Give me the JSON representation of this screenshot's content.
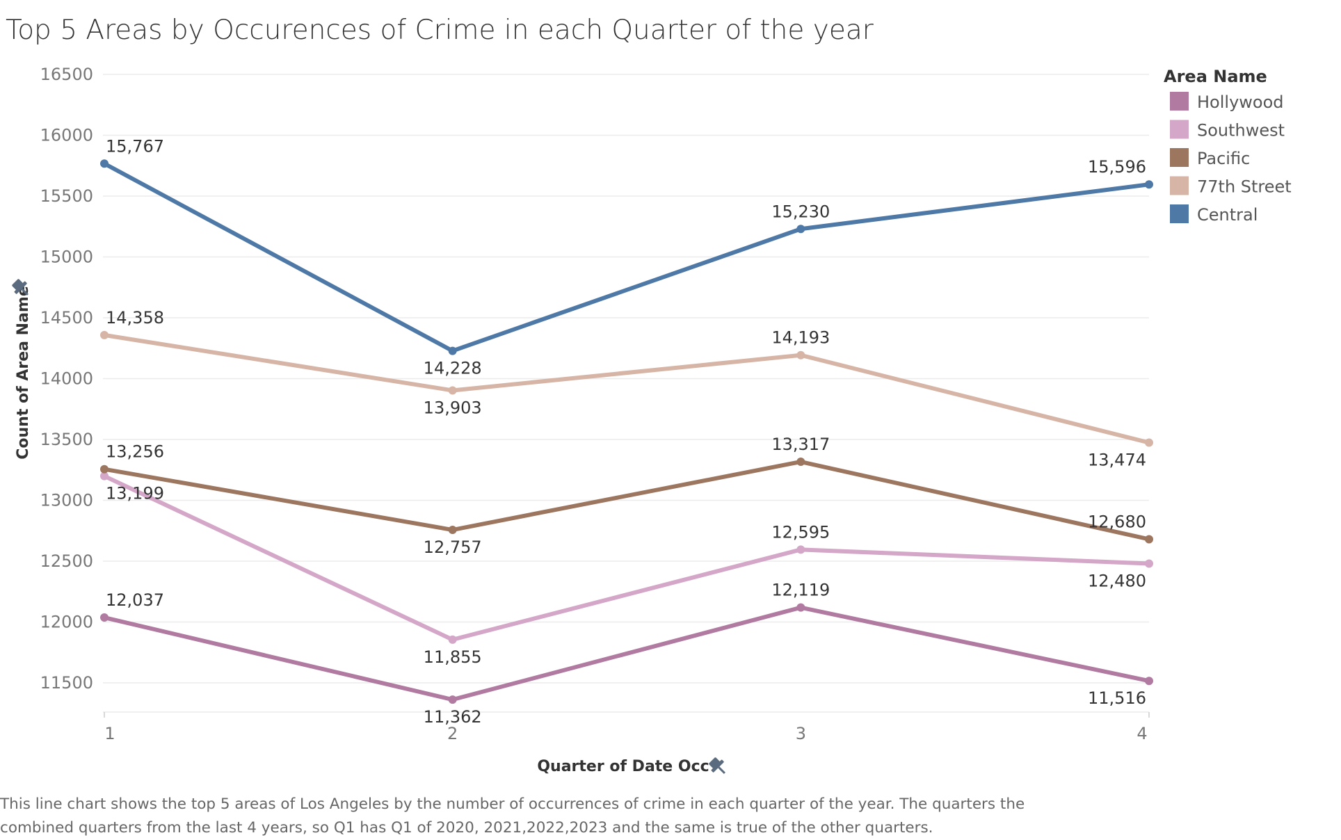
{
  "chart_data": {
    "type": "line",
    "title": "Top 5 Areas by Occurences of Crime in each Quarter of the year",
    "xlabel": "Quarter of Date Occ",
    "ylabel": "Count of Area Name",
    "categories": [
      "1",
      "2",
      "3",
      "4"
    ],
    "ylim": [
      11250,
      16500
    ],
    "yticks": [
      11500,
      12000,
      12500,
      13000,
      13500,
      14000,
      14500,
      15000,
      15500,
      16000,
      16500
    ],
    "grid": true,
    "legend_title": "Area Name",
    "legend_position": "right",
    "series": [
      {
        "name": "Hollywood",
        "color": "#b07aa1",
        "values": [
          12037,
          11362,
          12119,
          11516
        ],
        "labels": [
          "12,037",
          "11,362",
          "12,119",
          "11,516"
        ],
        "label_pos": [
          "above",
          "below",
          "above",
          "below"
        ]
      },
      {
        "name": "Southwest",
        "color": "#d4a6c8",
        "values": [
          13199,
          11855,
          12595,
          12480
        ],
        "labels": [
          "13,199",
          "11,855",
          "12,595",
          "12,480"
        ],
        "label_pos": [
          "below",
          "below",
          "above",
          "below"
        ]
      },
      {
        "name": "Pacific",
        "color": "#9d7660",
        "values": [
          13256,
          12757,
          13317,
          12680
        ],
        "labels": [
          "13,256",
          "12,757",
          "13,317",
          "12,680"
        ],
        "label_pos": [
          "above",
          "below",
          "above",
          "above"
        ]
      },
      {
        "name": "77th Street",
        "color": "#d7b5a6",
        "values": [
          14358,
          13903,
          14193,
          13474
        ],
        "labels": [
          "14,358",
          "13,903",
          "14,193",
          "13,474"
        ],
        "label_pos": [
          "above",
          "below",
          "above",
          "below"
        ]
      },
      {
        "name": "Central",
        "color": "#4e79a7",
        "values": [
          15767,
          14228,
          15230,
          15596
        ],
        "labels": [
          "15,767",
          "14,228",
          "15,230",
          "15,596"
        ],
        "label_pos": [
          "above",
          "below",
          "above",
          "above"
        ]
      }
    ]
  },
  "caption": "This line chart shows the top 5 areas of Los Angeles by the number of occurrences of crime in each quarter of the year. The quarters the combined quarters from the last 4 years, so Q1 has Q1 of 2020, 2021,2022,2023 and the same is true of the other quarters.",
  "icons": {
    "y_axis_pin": "pin-icon",
    "x_axis_pin": "pin-icon"
  }
}
